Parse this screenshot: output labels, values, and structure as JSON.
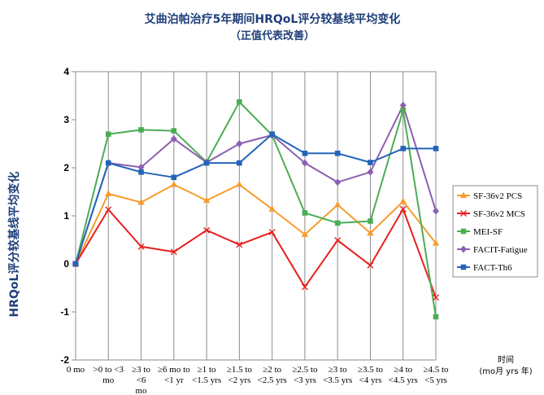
{
  "chart_data": {
    "type": "line",
    "title": "艾曲泊帕治疗5年期间HRQoL评分较基线平均变化",
    "subtitle": "（正值代表改善）",
    "ylabel": "HRQoL评分较基线平均变化",
    "xlabel": "时间",
    "xlabel_unit": "(mo月 yrs 年)",
    "ylim": [
      -2,
      4
    ],
    "yticks": [
      "-2",
      "-1",
      "0",
      "1",
      "2",
      "3",
      "4"
    ],
    "grid": "vertical",
    "legend_position": "right",
    "categories": [
      [
        "0 mo"
      ],
      [
        ">0 to <3",
        "mo"
      ],
      [
        "≥3 to",
        "<6",
        "mo"
      ],
      [
        "≥6 mo to",
        "<1 yr"
      ],
      [
        "≥1 to",
        "<1.5 yrs"
      ],
      [
        "≥1.5 to",
        "<2 yrs"
      ],
      [
        "≥2 to",
        "<2.5 yrs"
      ],
      [
        "≥2.5 to",
        "<3 yrs"
      ],
      [
        "≥3 to",
        "<3.5 yrs"
      ],
      [
        "≥3.5 to",
        "<4 yrs"
      ],
      [
        "≥4 to",
        "<4.5 yrs"
      ],
      [
        "≥4.5 to",
        "<5 yrs"
      ]
    ],
    "series": [
      {
        "name": "SF-36v2 PCS",
        "color": "#f79c2e",
        "marker": "triangle",
        "values": [
          0,
          1.46,
          1.28,
          1.65,
          1.32,
          1.65,
          1.14,
          0.61,
          1.23,
          0.64,
          1.3,
          0.43
        ]
      },
      {
        "name": "SF-36v2 MCS",
        "color": "#e8201e",
        "marker": "x",
        "values": [
          0,
          1.13,
          0.36,
          0.25,
          0.7,
          0.4,
          0.66,
          -0.48,
          0.49,
          -0.03,
          1.14,
          -0.7
        ]
      },
      {
        "name": "MEI-SF",
        "color": "#4aad55",
        "marker": "square",
        "values": [
          0,
          2.7,
          2.79,
          2.77,
          2.12,
          3.37,
          2.68,
          1.06,
          0.85,
          0.89,
          3.2,
          -1.1
        ]
      },
      {
        "name": "FACIT-Fatigue",
        "color": "#8b60b0",
        "marker": "diamond",
        "values": [
          0,
          2.1,
          2.01,
          2.6,
          2.11,
          2.5,
          2.68,
          2.1,
          1.7,
          1.91,
          3.3,
          1.1
        ]
      },
      {
        "name": "FACT-Th6",
        "color": "#2463b8",
        "marker": "square",
        "values": [
          0,
          2.1,
          1.91,
          1.8,
          2.1,
          2.1,
          2.7,
          2.3,
          2.3,
          2.11,
          2.4,
          2.4
        ]
      }
    ]
  }
}
